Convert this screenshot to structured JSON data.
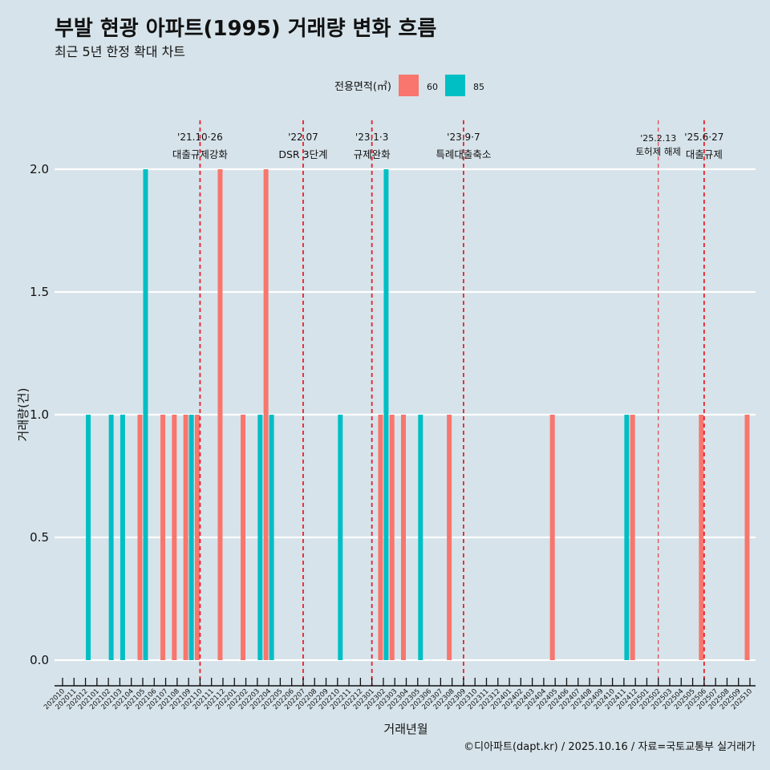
{
  "chart_data": {
    "type": "bar",
    "title": "부발 현광 아파트(1995) 거래량 변화 흐름",
    "subtitle": "최근 5년 한정 확대 차트",
    "xlabel": "거래년월",
    "ylabel": "거래량(건)",
    "ylim": [
      0,
      2
    ],
    "yticks": [
      "0.0",
      "0.5",
      "1.0",
      "1.5",
      "2.0"
    ],
    "ytick_values": [
      0,
      0.5,
      1,
      1.5,
      2
    ],
    "grid": true,
    "legend": {
      "title": "전용면적(㎡)",
      "position": "top",
      "entries": [
        "60",
        "85"
      ]
    },
    "colors": {
      "60": "#f8766d",
      "85": "#00bfc4",
      "background": "#d6e3ea",
      "event_line": "#e8202a"
    },
    "categories": [
      "202010",
      "202011",
      "202012",
      "202101",
      "202102",
      "202103",
      "202104",
      "202105",
      "202106",
      "202107",
      "202108",
      "202109",
      "202110",
      "202111",
      "202112",
      "202201",
      "202202",
      "202203",
      "202204",
      "202205",
      "202206",
      "202207",
      "202208",
      "202209",
      "202210",
      "202211",
      "202212",
      "202301",
      "202302",
      "202303",
      "202304",
      "202305",
      "202306",
      "202307",
      "202308",
      "202309",
      "202310",
      "202311",
      "202312",
      "202401",
      "202402",
      "202403",
      "202404",
      "202405",
      "202406",
      "202407",
      "202408",
      "202409",
      "202410",
      "202411",
      "202412",
      "202501",
      "202502",
      "202503",
      "202504",
      "202505",
      "202506",
      "202507",
      "202508",
      "202509",
      "202510"
    ],
    "series": [
      {
        "name": "60",
        "points": [
          {
            "x": "202105",
            "y": 1
          },
          {
            "x": "202107",
            "y": 1
          },
          {
            "x": "202108",
            "y": 1
          },
          {
            "x": "202109",
            "y": 1
          },
          {
            "x": "202110",
            "y": 1
          },
          {
            "x": "202112",
            "y": 2
          },
          {
            "x": "202202",
            "y": 1
          },
          {
            "x": "202204",
            "y": 2
          },
          {
            "x": "202302",
            "y": 1
          },
          {
            "x": "202303",
            "y": 1
          },
          {
            "x": "202304",
            "y": 1
          },
          {
            "x": "202308",
            "y": 1
          },
          {
            "x": "202405",
            "y": 1
          },
          {
            "x": "202412",
            "y": 1
          },
          {
            "x": "202506",
            "y": 1
          },
          {
            "x": "202510",
            "y": 1
          }
        ]
      },
      {
        "name": "85",
        "points": [
          {
            "x": "202012",
            "y": 1
          },
          {
            "x": "202102",
            "y": 1
          },
          {
            "x": "202103",
            "y": 1
          },
          {
            "x": "202105",
            "y": 2
          },
          {
            "x": "202109",
            "y": 1
          },
          {
            "x": "202203",
            "y": 1
          },
          {
            "x": "202204",
            "y": 1
          },
          {
            "x": "202210",
            "y": 1
          },
          {
            "x": "202302",
            "y": 2
          },
          {
            "x": "202305",
            "y": 1
          },
          {
            "x": "202411",
            "y": 1
          }
        ]
      }
    ],
    "annotations": [
      {
        "x": "202110",
        "line1": "'21.10·26",
        "line2": "대출규제강화",
        "style": "major"
      },
      {
        "x": "202207",
        "line1": "'22.07",
        "line2": "DSR 3단계",
        "style": "major"
      },
      {
        "x": "202301",
        "line1": "'23.1·3",
        "line2": "규제완화",
        "style": "major"
      },
      {
        "x": "202309",
        "line1": "'23.9·7",
        "line2": "특례대출축소",
        "style": "major"
      },
      {
        "x": "202502",
        "line1": "'25.2.13",
        "line2": "토허제 해제",
        "style": "minor"
      },
      {
        "x": "202506",
        "line1": "'25.6·27",
        "line2": "대출규제",
        "style": "major"
      }
    ]
  },
  "caption": "©디아파트(dapt.kr) / 2025.10.16 / 자료=국토교통부 실거래가"
}
